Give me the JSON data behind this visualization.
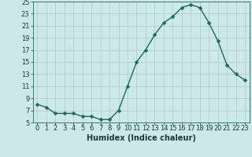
{
  "x": [
    0,
    1,
    2,
    3,
    4,
    5,
    6,
    7,
    8,
    9,
    10,
    11,
    12,
    13,
    14,
    15,
    16,
    17,
    18,
    19,
    20,
    21,
    22,
    23
  ],
  "y": [
    8.0,
    7.5,
    6.5,
    6.5,
    6.5,
    6.0,
    6.0,
    5.5,
    5.5,
    7.0,
    11.0,
    15.0,
    17.0,
    19.5,
    21.5,
    22.5,
    24.0,
    24.5,
    24.0,
    21.5,
    18.5,
    14.5,
    13.0,
    12.0
  ],
  "xlabel": "Humidex (Indice chaleur)",
  "bg_color": "#cce8e8",
  "grid_color": "#aacccc",
  "line_color": "#1a6b5a",
  "marker_color": "#1a6b5a",
  "ylim": [
    5,
    25
  ],
  "xlim": [
    -0.5,
    23.5
  ],
  "yticks": [
    5,
    7,
    9,
    11,
    13,
    15,
    17,
    19,
    21,
    23,
    25
  ],
  "xtick_labels": [
    "0",
    "1",
    "2",
    "3",
    "4",
    "5",
    "6",
    "7",
    "8",
    "9",
    "10",
    "11",
    "12",
    "13",
    "14",
    "15",
    "16",
    "17",
    "18",
    "19",
    "20",
    "21",
    "22",
    "23"
  ],
  "xlabel_fontsize": 7,
  "tick_fontsize": 6,
  "line_width": 1.0,
  "marker_size": 2.5
}
